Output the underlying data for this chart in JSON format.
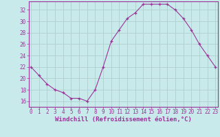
{
  "x": [
    0,
    1,
    2,
    3,
    4,
    5,
    6,
    7,
    8,
    9,
    10,
    11,
    12,
    13,
    14,
    15,
    16,
    17,
    18,
    19,
    20,
    21,
    22,
    23
  ],
  "y": [
    22,
    20.5,
    19,
    18,
    17.5,
    16.5,
    16.5,
    16,
    18,
    22,
    26.5,
    28.5,
    30.5,
    31.5,
    33,
    33,
    33,
    33,
    32,
    30.5,
    28.5,
    26,
    24,
    22
  ],
  "line_color": "#993399",
  "marker": "+",
  "bg_color": "#c8eaea",
  "grid_color": "#b0cece",
  "xlabel": "Windchill (Refroidissement éolien,°C)",
  "xlabel_color": "#993399",
  "tick_color": "#993399",
  "spine_color": "#993399",
  "ylim": [
    15.0,
    33.5
  ],
  "yticks": [
    16,
    18,
    20,
    22,
    24,
    26,
    28,
    30,
    32
  ],
  "xticks": [
    0,
    1,
    2,
    3,
    4,
    5,
    6,
    7,
    8,
    9,
    10,
    11,
    12,
    13,
    14,
    15,
    16,
    17,
    18,
    19,
    20,
    21,
    22,
    23
  ],
  "xlim": [
    -0.3,
    23.3
  ],
  "tick_fontsize": 5.5,
  "xlabel_fontsize": 6.5,
  "marker_size": 3,
  "linewidth": 0.8
}
